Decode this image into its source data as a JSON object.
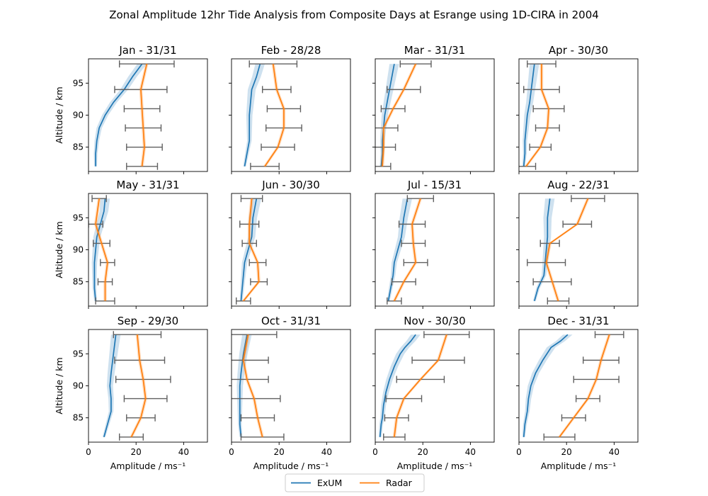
{
  "figure": {
    "title": "Zonal Amplitude 12hr Tide Analysis from Composite Days at Esrange using 1D-CIRA in 2004",
    "ylabel": "Altitude / km",
    "xlabel": "Amplitude / ms⁻¹",
    "legend": [
      "ExUM",
      "Radar"
    ],
    "colors": {
      "exum": "#1f77b4",
      "radar": "#ff7f0e",
      "errorbar": "#606060"
    }
  },
  "chart_data": {
    "type": "line",
    "xlim": [
      0,
      50
    ],
    "ylim": [
      81.2,
      98.8
    ],
    "xticks": [
      0,
      20,
      40
    ],
    "yticks": [
      85,
      90,
      95
    ],
    "grid": false,
    "legend_position": "bottom-center",
    "altitudes": [
      82,
      85,
      88,
      91,
      94,
      98
    ],
    "panels": [
      {
        "title": "Jan - 31/31",
        "exum": {
          "x": [
            3.0,
            3.0,
            3.5,
            4.5,
            7.0,
            10.5,
            15.0,
            18.5,
            22.5
          ],
          "y": [
            82,
            84,
            86,
            88,
            90,
            92,
            94,
            96,
            98
          ]
        },
        "radar": {
          "x": [
            22.5,
            23.5,
            23.0,
            22.5,
            22.0,
            24.5
          ],
          "err": [
            6.5,
            7.5,
            7.5,
            7.5,
            11.0,
            11.5
          ]
        }
      },
      {
        "title": "Feb - 28/28",
        "exum": {
          "x": [
            5.5,
            6.5,
            7.5,
            7.5,
            8.5,
            10.5,
            12.0
          ],
          "y": [
            82,
            84,
            86,
            90,
            94,
            96,
            98
          ]
        },
        "radar": {
          "x": [
            14.0,
            19.5,
            22.0,
            22.0,
            19.0,
            17.5
          ],
          "err": [
            6.0,
            7.0,
            7.5,
            7.0,
            6.0,
            10.0
          ]
        }
      },
      {
        "title": "Mar - 31/31",
        "exum": {
          "x": [
            2.5,
            3.0,
            3.0,
            3.5,
            4.0,
            5.0,
            6.5,
            8.0
          ],
          "y": [
            82,
            84,
            86,
            88,
            90,
            92,
            95,
            98
          ]
        },
        "radar": {
          "x": [
            3.0,
            3.5,
            3.5,
            7.5,
            12.0,
            17.0
          ],
          "err": [
            3.5,
            5.0,
            6.0,
            5.0,
            7.0,
            6.5
          ]
        }
      },
      {
        "title": "Apr - 30/30",
        "exum": {
          "x": [
            2.0,
            2.5,
            2.5,
            3.0,
            3.5,
            4.5,
            5.5,
            6.5
          ],
          "y": [
            82,
            84,
            86,
            88,
            90,
            92,
            95,
            98
          ]
        },
        "radar": {
          "x": [
            3.0,
            9.0,
            12.0,
            12.5,
            9.5,
            9.5
          ],
          "err": [
            4.0,
            4.5,
            5.0,
            6.5,
            7.5,
            6.0
          ]
        }
      },
      {
        "title": "May - 31/31",
        "exum": {
          "x": [
            3.0,
            2.5,
            2.5,
            2.5,
            3.0,
            3.5,
            5.0,
            6.5,
            7.0
          ],
          "y": [
            82,
            84,
            86,
            88,
            90,
            92,
            94,
            96,
            98
          ]
        },
        "radar": {
          "x": [
            7.0,
            7.0,
            8.0,
            5.5,
            3.0,
            4.5
          ],
          "err": [
            4.0,
            3.0,
            3.0,
            3.5,
            3.0,
            3.0
          ]
        }
      },
      {
        "title": "Jun - 30/30",
        "exum": {
          "x": [
            4.0,
            4.5,
            5.0,
            5.5,
            7.0,
            8.5,
            9.0,
            10.5
          ],
          "y": [
            82,
            84,
            86,
            88,
            90,
            92,
            95,
            98
          ]
        },
        "radar": {
          "x": [
            5.0,
            11.5,
            11.0,
            7.5,
            7.5,
            8.5
          ],
          "err": [
            3.0,
            3.5,
            3.5,
            3.0,
            4.0,
            4.5
          ]
        }
      },
      {
        "title": "Jul - 15/31",
        "exum": {
          "x": [
            5.5,
            6.5,
            7.5,
            8.0,
            9.5,
            11.0,
            12.0,
            13.5
          ],
          "y": [
            82,
            84,
            86,
            88,
            90,
            92,
            95,
            98
          ]
        },
        "radar": {
          "x": [
            8.0,
            12.0,
            17.0,
            16.0,
            15.5,
            19.0
          ],
          "err": [
            3.0,
            5.0,
            5.0,
            5.0,
            5.5,
            5.5
          ]
        }
      },
      {
        "title": "Aug - 22/31",
        "exum": {
          "x": [
            6.5,
            8.0,
            10.5,
            11.0,
            11.5,
            12.0,
            12.0,
            13.0
          ],
          "y": [
            82,
            84,
            86,
            88,
            90,
            92,
            95,
            98
          ]
        },
        "radar": {
          "x": [
            16.5,
            14.0,
            11.5,
            13.0,
            24.5,
            29.0
          ],
          "err": [
            4.5,
            8.0,
            8.0,
            4.0,
            6.0,
            7.0
          ]
        }
      },
      {
        "title": "Sep - 29/30",
        "exum": {
          "x": [
            6.5,
            8.0,
            9.5,
            9.5,
            9.0,
            9.5,
            10.5,
            11.5
          ],
          "y": [
            82,
            84,
            86,
            88,
            90,
            92,
            95,
            98
          ]
        },
        "radar": {
          "x": [
            18.0,
            22.0,
            24.0,
            23.0,
            21.5,
            20.5
          ],
          "err": [
            5.0,
            6.0,
            9.0,
            11.5,
            10.5,
            10.0
          ]
        }
      },
      {
        "title": "Oct - 31/31",
        "exum": {
          "x": [
            4.0,
            3.5,
            3.5,
            3.5,
            3.5,
            4.0,
            5.0,
            6.5
          ],
          "y": [
            82,
            84,
            86,
            88,
            90,
            92,
            95,
            98
          ]
        },
        "radar": {
          "x": [
            13.0,
            11.0,
            9.5,
            6.5,
            5.0,
            7.0
          ],
          "err": [
            9.0,
            7.0,
            11.0,
            9.0,
            10.5,
            12.0
          ]
        }
      },
      {
        "title": "Nov - 30/30",
        "exum": {
          "x": [
            2.0,
            2.5,
            3.0,
            3.5,
            4.5,
            6.0,
            8.0,
            10.5,
            12.5,
            15.0,
            17.0
          ],
          "y": [
            82,
            84,
            85,
            87,
            89,
            91,
            93,
            95,
            96,
            97,
            98
          ]
        },
        "radar": {
          "x": [
            8.0,
            9.0,
            12.0,
            19.0,
            26.5,
            30.0
          ],
          "err": [
            4.5,
            5.0,
            7.5,
            10.0,
            11.0,
            9.5
          ]
        }
      },
      {
        "title": "Dec - 31/31",
        "exum": {
          "x": [
            2.0,
            2.5,
            3.5,
            4.0,
            5.0,
            7.0,
            10.0,
            13.5,
            17.5,
            20.5
          ],
          "y": [
            82,
            84,
            86,
            88,
            90,
            92,
            94,
            96,
            97,
            98
          ]
        },
        "radar": {
          "x": [
            17.0,
            23.0,
            29.0,
            32.5,
            34.5,
            38.0
          ],
          "err": [
            6.5,
            5.0,
            5.0,
            9.5,
            7.5,
            6.0
          ]
        }
      }
    ]
  }
}
